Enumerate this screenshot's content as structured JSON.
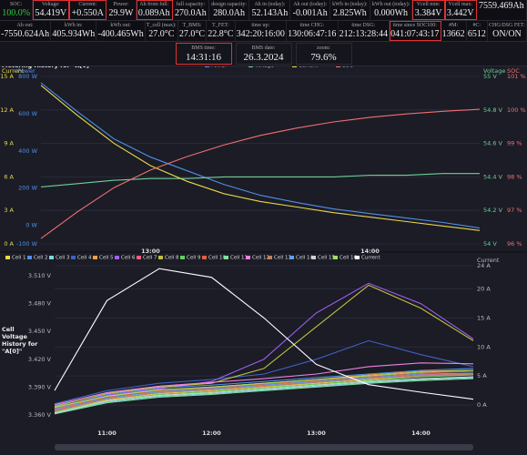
{
  "top": {
    "row1": [
      {
        "label": "SOC:",
        "value": "100.0%",
        "color": "#2ecc40"
      },
      {
        "label": "Voltage:",
        "value": "54.419V"
      },
      {
        "label": "Current:",
        "value": "+0.550A"
      },
      {
        "label": "Power:",
        "value": "29.9W"
      },
      {
        "label": "Ah from full:",
        "value": "0.089Ah"
      },
      {
        "label": "full capacity:",
        "value": "270.0Ah"
      },
      {
        "label": "design capacity:",
        "value": "280.0Ah"
      },
      {
        "label": "Ah in (today):",
        "value": "52.143Ah"
      },
      {
        "label": "Ah out (today):",
        "value": "-0.001Ah"
      },
      {
        "label": "kWh in (today):",
        "value": "2.825Wh"
      },
      {
        "label": "kWh out (today):",
        "value": "0.000Wh"
      },
      {
        "label": "Vcell min:",
        "value": "3.384V"
      },
      {
        "label": "Vcell max:",
        "value": "3.442V"
      },
      {
        "value": "7559.469Ah"
      }
    ],
    "row2": [
      {
        "label": "Ah out:",
        "value": "-7550.624Ah"
      },
      {
        "label": "kWh in:",
        "value": "405.934Wh"
      },
      {
        "label": "kWh out:",
        "value": "-400.465Wh"
      },
      {
        "label": "T_cell (max):",
        "value": "27.0°C"
      },
      {
        "label": "T_BMS:",
        "value": "27.0°C"
      },
      {
        "label": "T_FET:",
        "value": "22.8°C"
      },
      {
        "label": "time up:",
        "value": "342:20:16:00"
      },
      {
        "label": "time CHG:",
        "value": "130:06:47:16"
      },
      {
        "label": "time DSG:",
        "value": "212:13:28:44"
      },
      {
        "label": "time since SOC100:",
        "value": "041:07:43:17"
      },
      {
        "label": "#M:",
        "value": "13662"
      },
      {
        "label": "#C:",
        "value": "6512"
      },
      {
        "label": "CHG/DSG FET:",
        "value": "ON/ON"
      }
    ],
    "row3": [
      {
        "label": "BMS time:",
        "value": "14:31:16"
      },
      {
        "label": "BMS date:",
        "value": "26.3.2024"
      },
      {
        "label": "zoom:",
        "value": "79.6%"
      }
    ]
  },
  "chart_data": [
    {
      "type": "line",
      "title": "Metering History for \"A[0]\"",
      "legend": "top",
      "categories": [
        null,
        null,
        null,
        "13:00",
        null,
        null,
        null,
        null,
        null,
        "14:00",
        null,
        null,
        null
      ],
      "axes": [
        {
          "label": "Current",
          "side": "left",
          "color": "#e8d84a",
          "grid": true,
          "lim": [
            0,
            15
          ],
          "ticks": [
            {
              "value": 0,
              "label": "0 A"
            },
            {
              "value": 3,
              "label": "3 A"
            },
            {
              "value": 6,
              "label": "6 A"
            },
            {
              "value": 9,
              "label": "9 A"
            },
            {
              "value": 12,
              "label": "12 A"
            },
            {
              "value": 15,
              "label": "15 A"
            }
          ]
        },
        {
          "label": "Power",
          "side": "left",
          "color": "#4f8fe8",
          "lim": [
            -100,
            800
          ],
          "ticks": [
            {
              "value": -100,
              "label": "-100 W"
            },
            {
              "value": 0,
              "label": "0 W"
            },
            {
              "value": 200,
              "label": "200 W"
            },
            {
              "value": 400,
              "label": "400 W"
            },
            {
              "value": 600,
              "label": "600 W"
            },
            {
              "value": 800,
              "label": "800 W"
            }
          ]
        },
        {
          "label": "Voltage",
          "side": "right",
          "color": "#6fcf97",
          "lim": [
            54,
            55
          ],
          "ticks": [
            {
              "value": 54,
              "label": "54 V"
            },
            {
              "value": 54.2,
              "label": "54.2 V"
            },
            {
              "value": 54.4,
              "label": "54.4 V"
            },
            {
              "value": 54.6,
              "label": "54.6 V"
            },
            {
              "value": 54.8,
              "label": "54.8 V"
            },
            {
              "value": 55,
              "label": "55 V"
            }
          ]
        },
        {
          "label": "SOC",
          "side": "right",
          "color": "#f07070",
          "lim": [
            96,
            101
          ],
          "ticks": [
            {
              "value": 96,
              "label": "96 %"
            },
            {
              "value": 97,
              "label": "97 %"
            },
            {
              "value": 98,
              "label": "98 %"
            },
            {
              "value": 99,
              "label": "99 %"
            },
            {
              "value": 100,
              "label": "100 %"
            },
            {
              "value": 101,
              "label": "101 %"
            }
          ]
        }
      ],
      "series": [
        {
          "name": "Power",
          "color": "#4f8fe8",
          "axis": 1,
          "values": [
            766,
            610,
            464,
            366,
            293,
            220,
            161,
            122,
            88,
            63,
            39,
            15,
            -15
          ]
        },
        {
          "name": "Voltage",
          "color": "#6fcf97",
          "axis": 2,
          "values": [
            54.34,
            54.36,
            54.38,
            54.39,
            54.39,
            54.4,
            54.4,
            54.4,
            54.4,
            54.41,
            54.41,
            54.42,
            54.42
          ]
        },
        {
          "name": "Current",
          "color": "#e8d84a",
          "axis": 0,
          "values": [
            14.2,
            11.5,
            9.0,
            7.0,
            5.6,
            4.5,
            3.8,
            3.3,
            2.8,
            2.4,
            2.0,
            1.6,
            1.2
          ]
        },
        {
          "name": "SOC",
          "color": "#f07070",
          "axis": 3,
          "values": [
            96.16,
            96.96,
            97.68,
            98.21,
            98.61,
            98.95,
            99.24,
            99.46,
            99.64,
            99.78,
            99.88,
            99.96,
            100.02
          ]
        }
      ]
    },
    {
      "type": "line",
      "title": "Cell Voltage History for \"A[0]\"",
      "legend": "top",
      "categories": [
        null,
        "11:00",
        null,
        "12:00",
        null,
        "13:00",
        null,
        "14:00",
        null
      ],
      "axes": [
        {
          "side": "left",
          "lim": [
            3.348,
            3.521
          ],
          "ticks": [
            {
              "value": 3.36,
              "label": "3.360 V"
            },
            {
              "value": 3.39,
              "label": "3.390 V"
            },
            {
              "value": 3.42,
              "label": "3.420 V"
            },
            {
              "value": 3.45,
              "label": "3.450 V"
            },
            {
              "value": 3.48,
              "label": "3.480 V"
            },
            {
              "value": 3.51,
              "label": "3.510 V"
            }
          ]
        },
        {
          "label": "Current",
          "side": "right",
          "grid": true,
          "lim": [
            -3.6,
            24
          ],
          "ticks": [
            {
              "value": 0,
              "label": "0 A"
            },
            {
              "value": 5,
              "label": "5 A"
            },
            {
              "value": 10,
              "label": "10 A"
            },
            {
              "value": 15,
              "label": "15 A"
            },
            {
              "value": 20,
              "label": "20 A"
            },
            {
              "value": 24,
              "label": "24 A"
            }
          ]
        }
      ],
      "series": [
        {
          "name": "Cell 1",
          "color": "#e8d84a",
          "axis": 0,
          "values": [
            3.364,
            3.376,
            3.383,
            3.386,
            3.39,
            3.394,
            3.398,
            3.402,
            3.404
          ]
        },
        {
          "name": "Cell 2",
          "color": "#4f8fe8",
          "axis": 0,
          "values": [
            3.37,
            3.382,
            3.389,
            3.392,
            3.396,
            3.4,
            3.404,
            3.408,
            3.41
          ]
        },
        {
          "name": "Cell 3",
          "color": "#7fd8e0",
          "axis": 0,
          "values": [
            3.362,
            3.374,
            3.38,
            3.383,
            3.387,
            3.391,
            3.395,
            3.398,
            3.4
          ]
        },
        {
          "name": "Cell 4",
          "color": "#4060c0",
          "axis": 0,
          "values": [
            3.372,
            3.386,
            3.394,
            3.398,
            3.404,
            3.42,
            3.44,
            3.425,
            3.412
          ]
        },
        {
          "name": "Cell 5",
          "color": "#f0a040",
          "axis": 0,
          "values": [
            3.366,
            3.38,
            3.386,
            3.39,
            3.394,
            3.398,
            3.403,
            3.407,
            3.408
          ]
        },
        {
          "name": "Cell 6",
          "color": "#a060f0",
          "axis": 0,
          "values": [
            3.368,
            3.381,
            3.388,
            3.396,
            3.42,
            3.47,
            3.502,
            3.48,
            3.442
          ]
        },
        {
          "name": "Cell 7",
          "color": "#f06080",
          "axis": 0,
          "values": [
            3.365,
            3.377,
            3.384,
            3.387,
            3.391,
            3.395,
            3.399,
            3.403,
            3.405
          ]
        },
        {
          "name": "Cell 8",
          "color": "#c0c040",
          "axis": 0,
          "values": [
            3.369,
            3.383,
            3.39,
            3.394,
            3.41,
            3.455,
            3.5,
            3.475,
            3.44
          ]
        },
        {
          "name": "Cell 9",
          "color": "#60d060",
          "axis": 0,
          "values": [
            3.363,
            3.375,
            3.382,
            3.385,
            3.389,
            3.393,
            3.397,
            3.401,
            3.403
          ]
        },
        {
          "name": "Cell 10",
          "color": "#e06040",
          "axis": 0,
          "values": [
            3.367,
            3.379,
            3.386,
            3.389,
            3.393,
            3.397,
            3.401,
            3.405,
            3.407
          ]
        },
        {
          "name": "Cell 11",
          "color": "#80e0a0",
          "axis": 0,
          "values": [
            3.361,
            3.373,
            3.379,
            3.382,
            3.386,
            3.39,
            3.394,
            3.397,
            3.399
          ]
        },
        {
          "name": "Cell 12",
          "color": "#f080e0",
          "axis": 0,
          "values": [
            3.371,
            3.384,
            3.391,
            3.395,
            3.399,
            3.404,
            3.412,
            3.416,
            3.415
          ]
        },
        {
          "name": "Cell 13",
          "color": "#c08060",
          "axis": 0,
          "values": [
            3.364,
            3.377,
            3.384,
            3.387,
            3.391,
            3.395,
            3.399,
            3.402,
            3.404
          ]
        },
        {
          "name": "Cell 14",
          "color": "#60a0f0",
          "axis": 0,
          "values": [
            3.366,
            3.378,
            3.385,
            3.388,
            3.392,
            3.396,
            3.4,
            3.404,
            3.405
          ]
        },
        {
          "name": "Cell 15",
          "color": "#d0d0d0",
          "axis": 0,
          "values": [
            3.362,
            3.375,
            3.381,
            3.384,
            3.388,
            3.392,
            3.396,
            3.399,
            3.401
          ]
        },
        {
          "name": "Cell 16",
          "color": "#a0e060",
          "axis": 0,
          "values": [
            3.368,
            3.38,
            3.387,
            3.39,
            3.394,
            3.398,
            3.402,
            3.406,
            3.408
          ]
        },
        {
          "name": "Current",
          "color": "#ffffff",
          "axis": 1,
          "values": [
            2.5,
            18,
            23.5,
            22,
            15,
            7,
            3.5,
            2.2,
            1.0
          ]
        }
      ]
    }
  ]
}
